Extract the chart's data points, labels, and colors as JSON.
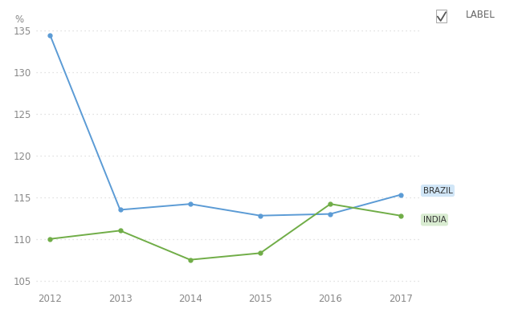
{
  "brazil": {
    "years": [
      2012,
      2013,
      2014,
      2015,
      2016,
      2017
    ],
    "values": [
      134.5,
      113.5,
      114.2,
      112.8,
      113.0,
      115.3
    ],
    "color": "#5b9bd5",
    "label": "BRAZIL",
    "label_bg": "#cce4f7"
  },
  "india": {
    "years": [
      2012,
      2013,
      2014,
      2015,
      2016,
      2017
    ],
    "values": [
      110.0,
      111.0,
      107.5,
      108.3,
      114.2,
      112.8
    ],
    "color": "#70ad47",
    "label": "INDIA",
    "label_bg": "#d5eacc"
  },
  "ylabel": "%",
  "ylim": [
    104,
    136
  ],
  "yticks": [
    105,
    110,
    115,
    120,
    125,
    130,
    135
  ],
  "xlim": [
    2011.8,
    2017.3
  ],
  "xticks": [
    2012,
    2013,
    2014,
    2015,
    2016,
    2017
  ],
  "grid_color": "#d9d9d9",
  "bg_color": "#ffffff",
  "legend_label": "LABEL",
  "tick_color": "#888888",
  "tick_fontsize": 8.5
}
